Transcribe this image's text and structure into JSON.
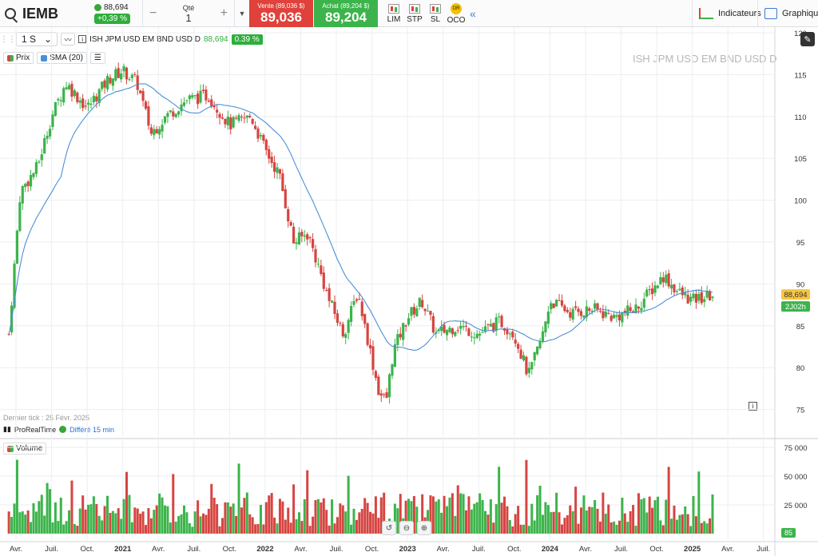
{
  "topbar": {
    "symbol": "IEMB",
    "last_price": "88,694",
    "change_pct": "+0,39 %",
    "qty_label": "Qté",
    "qty_value": "1",
    "minus": "−",
    "plus": "+",
    "sell_label": "Vente (89,036 $)",
    "sell_price": "89,036",
    "buy_label": "Achat (89,204 $)",
    "buy_price": "89,204",
    "orders": [
      "LIM",
      "STP",
      "SL",
      "OCO"
    ],
    "oco_badge": "OR",
    "indicators_label": "Indicateurs",
    "graph_label": "Graphique"
  },
  "toolbar": {
    "period": "1 S",
    "instrument": "ISH JPM USD EM BND USD D",
    "last": "88,694",
    "change": "0.39 %"
  },
  "legend": {
    "price": "Prix",
    "sma": "SMA (20)"
  },
  "watermark": "ISH JPM USD EM BND USD D",
  "last_tick": "Dernier tick : 25 Févr. 2025",
  "realtime": {
    "provider": "ProRealTime",
    "delay": "Différé 15 min"
  },
  "volume_label": "Volume",
  "price_tag": "88,694",
  "time_tag": "2J02h",
  "volume_tag": "85",
  "colors": {
    "up": "#3cb44b",
    "down": "#d64541",
    "sma": "#4a90d9"
  },
  "chart_data": {
    "type": "candlestick",
    "title": "ISH JPM USD EM BND USD D",
    "y_ticks": [
      "120",
      "115",
      "110",
      "105",
      "100",
      "95",
      "90",
      "85",
      "80",
      "75"
    ],
    "ylim": [
      74,
      120
    ],
    "volume_ticks": [
      "75 000",
      "50 000",
      "25 000"
    ],
    "volume_ylim": [
      0,
      80000
    ],
    "x_ticks": [
      "Avr.",
      "Juil.",
      "Oct.",
      "2021",
      "Avr.",
      "Juil.",
      "Oct.",
      "2022",
      "Avr.",
      "Juil.",
      "Oct.",
      "2023",
      "Avr.",
      "Juil.",
      "Oct.",
      "2024",
      "Avr.",
      "Juil.",
      "Oct.",
      "2025",
      "Avr.",
      "Juil."
    ],
    "price_anchors": [
      [
        2020.2,
        84
      ],
      [
        2020.28,
        101
      ],
      [
        2020.4,
        104
      ],
      [
        2020.5,
        110
      ],
      [
        2020.6,
        114
      ],
      [
        2020.75,
        111
      ],
      [
        2020.9,
        114.5
      ],
      [
        2021.0,
        115.5
      ],
      [
        2021.1,
        114
      ],
      [
        2021.2,
        108
      ],
      [
        2021.3,
        110
      ],
      [
        2021.45,
        112
      ],
      [
        2021.6,
        112.5
      ],
      [
        2021.75,
        109
      ],
      [
        2021.9,
        110
      ],
      [
        2022.0,
        106
      ],
      [
        2022.1,
        103
      ],
      [
        2022.2,
        95
      ],
      [
        2022.3,
        96
      ],
      [
        2022.45,
        88
      ],
      [
        2022.55,
        84
      ],
      [
        2022.65,
        89
      ],
      [
        2022.7,
        85
      ],
      [
        2022.8,
        77
      ],
      [
        2022.85,
        76
      ],
      [
        2022.9,
        82
      ],
      [
        2023.0,
        86
      ],
      [
        2023.1,
        88
      ],
      [
        2023.2,
        84
      ],
      [
        2023.35,
        85
      ],
      [
        2023.5,
        84
      ],
      [
        2023.65,
        85.5
      ],
      [
        2023.75,
        84
      ],
      [
        2023.85,
        79
      ],
      [
        2023.95,
        84
      ],
      [
        2024.0,
        88
      ],
      [
        2024.15,
        86.5
      ],
      [
        2024.3,
        87
      ],
      [
        2024.45,
        86
      ],
      [
        2024.6,
        87
      ],
      [
        2024.7,
        89
      ],
      [
        2024.8,
        91
      ],
      [
        2024.9,
        89
      ],
      [
        2025.0,
        88
      ],
      [
        2025.15,
        88.7
      ]
    ]
  }
}
